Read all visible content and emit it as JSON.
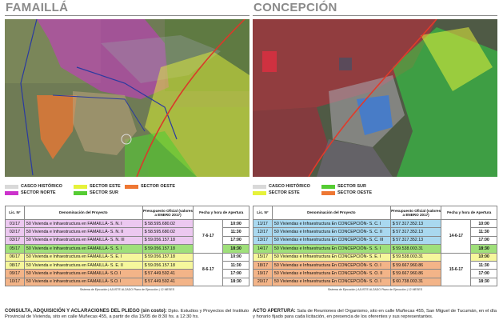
{
  "left": {
    "city": "FAMAILLÁ",
    "legend": [
      {
        "label": "CASCO HISTÓRICO",
        "color": "#d9d9d9"
      },
      {
        "label": "SECTOR NORTE",
        "color": "#cc33cc"
      },
      {
        "label": "SECTOR ESTE",
        "color": "#e6f23a"
      },
      {
        "label": "SECTOR SUR",
        "color": "#55cc33"
      },
      {
        "label": "SECTOR OESTE",
        "color": "#ee7733"
      }
    ],
    "headers": {
      "lic": "Lic. N°",
      "denom": "Denominación del Proyecto",
      "presupuesto": "Presupuesto Oficial (valores a ENERO 2017)",
      "fecha": "Fecha y hora de Apertura"
    },
    "rows": [
      {
        "lic": "01/17",
        "name": "50 Vivienda e Infraestructura en FAMAILLÁ- S. N. I",
        "amount": "$ 58.595.680.02",
        "time": "10:00",
        "color": "#ecc8f0"
      },
      {
        "lic": "02/17",
        "name": "50 Vivienda e Infraestructura en FAMAILLÁ- S. N. II",
        "amount": "$ 58.595.680.02",
        "time": "11:30",
        "color": "#ecc8f0"
      },
      {
        "lic": "03/17",
        "name": "50 Vivienda e Infraestructura en FAMAILLÁ- S. N. III",
        "amount": "$ 59.056.157.18",
        "time": "17:00",
        "color": "#ecc8f0"
      },
      {
        "lic": "05/17",
        "name": "50 Vivienda e Infraestructura en FAMAILLÁ- S. S. I",
        "amount": "$ 59.056.157.18",
        "time": "18:30",
        "color": "#9fe07a"
      },
      {
        "lic": "06/17",
        "name": "50 Vivienda e Infraestructura en FAMAILLÁ- S. E. I",
        "amount": "$ 59.056.157.18",
        "time": "10:00",
        "color": "#f6f79c"
      },
      {
        "lic": "08/17",
        "name": "50 Vivienda e Infraestructura en FAMAILLÁ- S. E. II",
        "amount": "$ 59.056.157.18",
        "time": "11:30",
        "color": "#f6f79c"
      },
      {
        "lic": "09/17",
        "name": "50 Vivienda e Infraestructura en FAMAILLÁ- S.O. I",
        "amount": "$ 57.449.592.41",
        "time": "17:00",
        "color": "#f3b488"
      },
      {
        "lic": "10/17",
        "name": "50 Vivienda e Infraestructura en FAMAILLÁ- S.O. I",
        "amount": "$ 57.449.592.41",
        "time": "18:30",
        "color": "#f3b488"
      }
    ],
    "dates": [
      "7-6-17",
      "8-6-17"
    ],
    "note": "Sistema de Ejecución | AJUSTE ALZADO     Plazo de Ejecución | 12 MESES",
    "footer_title": "CONSULTA, ADQUISICIÓN Y ACLARACIONES DEL PLIEGO (sin costo):",
    "footer_text": " Dpto. Estudios y Proyectos del Instituto Provincial de Vivienda, sito en calle Muñecas 455, a partir de día 15/05 de 8:30 hs. a 12:30 hs."
  },
  "right": {
    "city": "CONCEPCIÓN",
    "legend": [
      {
        "label": "CASCO HISTÓRICO",
        "color": "#d9d9d9"
      },
      {
        "label": "SECTOR ESTE",
        "color": "#e6f23a"
      },
      {
        "label": "SECTOR SUR",
        "color": "#55cc33"
      },
      {
        "label": "SECTOR OESTE",
        "color": "#ee7733"
      }
    ],
    "headers": {
      "lic": "Lic. N°",
      "denom": "Denominación del Proyecto",
      "presupuesto": "Presupuesto Oficial (valores a ENERO 2017)",
      "fecha": "Fecha y hora de Apertura"
    },
    "rows": [
      {
        "lic": "11/17",
        "name": "50 Viviendas e Infraestructura En CONCEPCIÓN- S. C. I",
        "amount": "$ 57.317.352.13",
        "time": "10:00",
        "color": "#a9d8ef"
      },
      {
        "lic": "12/17",
        "name": "50 Viviendas e Infraestructura En CONCEPCIÓN- S. C. II",
        "amount": "$ 57.317.352.13",
        "time": "11:30",
        "color": "#a9d8ef"
      },
      {
        "lic": "13/17",
        "name": "50 Viviendas e Infraestructura En CONCEPCIÓN- S. C. III",
        "amount": "$ 57.317.352.13",
        "time": "17:00",
        "color": "#a9d8ef"
      },
      {
        "lic": "14/17",
        "name": "50 Viviendas e Infraestructura En CONCEPCIÓN- S. S. I",
        "amount": "$ 59.538.003.31",
        "time": "18:30",
        "color": "#9fe07a"
      },
      {
        "lic": "15/17",
        "name": "50 Viviendas e Infraestructura En CONCEPCIÓN- S. E. I",
        "amount": "$ 59.538.003.31",
        "time": "10:00",
        "color": "#f6f79c"
      },
      {
        "lic": "18/17",
        "name": "50 Viviendas e Infraestructura En CONCEPCIÓN- S. O. I",
        "amount": "$ 59.667.960.86",
        "time": "11:30",
        "color": "#f3b488"
      },
      {
        "lic": "19/17",
        "name": "50 Viviendas e Infraestructura En CONCEPCIÓN- S. O. II",
        "amount": "$ 59.667.960.86",
        "time": "17:00",
        "color": "#f3b488"
      },
      {
        "lic": "20/17",
        "name": "50 Viviendas e Infraestructura En CONCEPCIÓN- S. O. I",
        "amount": "$ 60.738.003.31",
        "time": "18:30",
        "color": "#f3b488"
      }
    ],
    "dates": [
      "14-6-17",
      "15-6-17"
    ],
    "note": "Sistema de Ejecución | AJUSTE ALZADO     Plazo de Ejecución | 12 MESES",
    "footer_title": "ACTO APERTURA:",
    "footer_text": " Sala de Reuniones del Organismo, sito en calle Muñecas 455, San Miguel de Tucumán, en el día y horario fijado para cada licitación, en presencia de los oferentes y sus representantes."
  }
}
